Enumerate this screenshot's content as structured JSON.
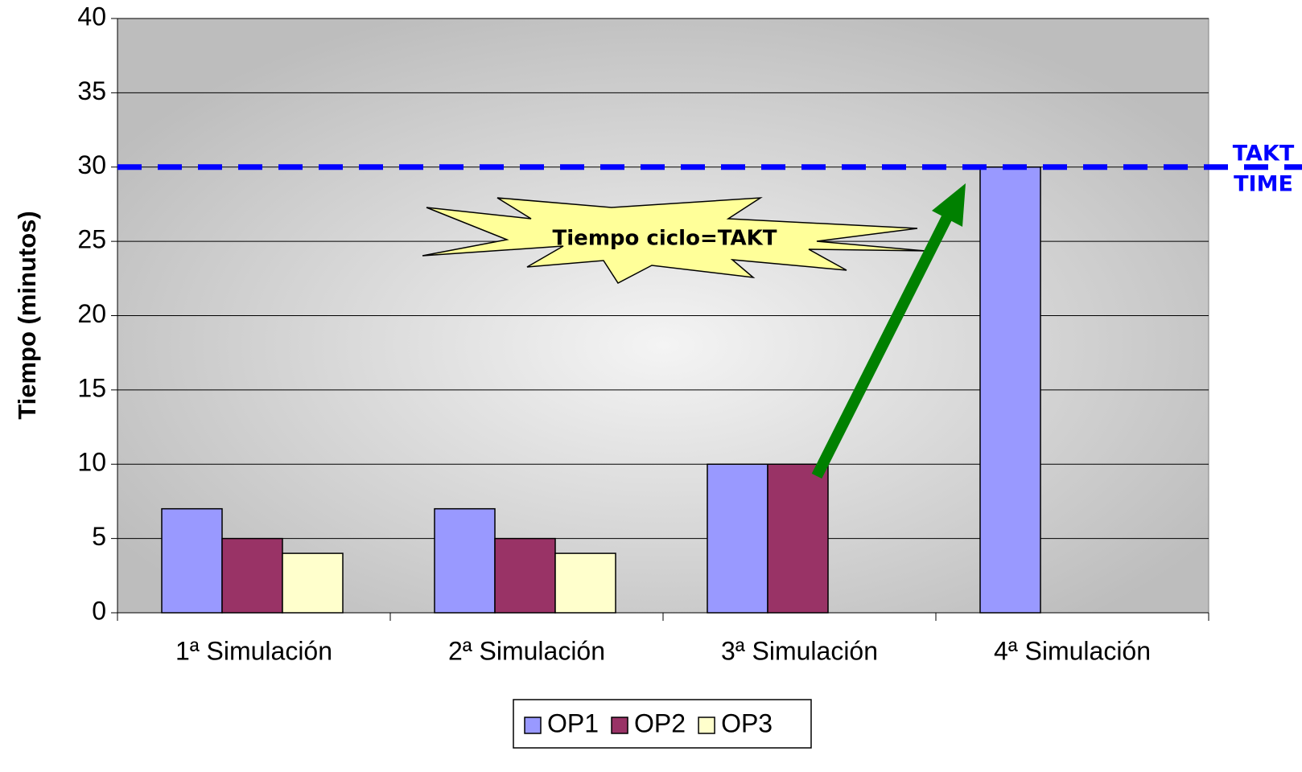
{
  "chart_data": {
    "type": "bar",
    "y_label": "Tiempo (minutos)",
    "categories": [
      "1ª Simulación",
      "2ª Simulación",
      "3ª Simulación",
      "4ª Simulación"
    ],
    "series": [
      {
        "name": "OP1",
        "color": "#9999ff",
        "values": [
          7,
          7,
          10,
          30
        ]
      },
      {
        "name": "OP2",
        "color": "#993366",
        "values": [
          5,
          5,
          10,
          null
        ]
      },
      {
        "name": "OP3",
        "color": "#ffffcc",
        "values": [
          4,
          4,
          null,
          null
        ]
      }
    ],
    "ylim": [
      0,
      40
    ],
    "yticks": [
      0,
      5,
      10,
      15,
      20,
      25,
      30,
      35,
      40
    ],
    "grid": true,
    "legend": "bottom",
    "takt_line": {
      "value": 30,
      "color": "#0000ff",
      "label": [
        "TAKT",
        "TIME"
      ]
    },
    "annotation": "Tiempo ciclo=TAKT"
  }
}
